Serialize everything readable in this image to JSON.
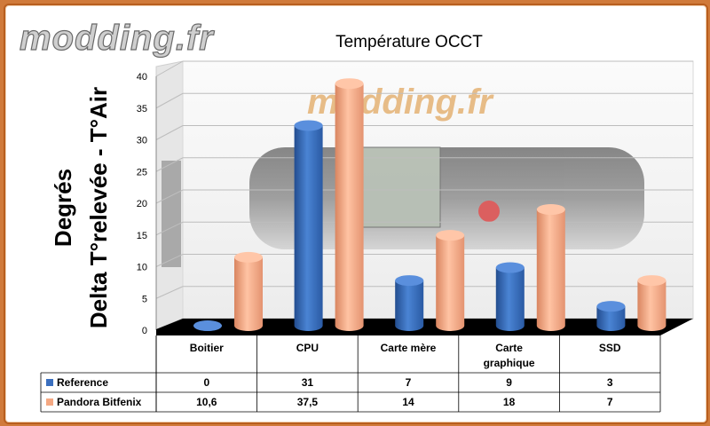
{
  "watermark": "modding.fr",
  "chart_data": {
    "type": "bar",
    "title": "Température OCCT",
    "ylabel_line1": "Degrés",
    "ylabel_line2": "Delta T°relevée - T°Air",
    "categories": [
      "Boitier",
      "CPU",
      "Carte mère",
      "Carte graphique",
      "SSD"
    ],
    "category_lines": [
      [
        "Boitier"
      ],
      [
        "CPU"
      ],
      [
        "Carte mère"
      ],
      [
        "Carte",
        "graphique"
      ],
      [
        "SSD"
      ]
    ],
    "ylim": [
      0,
      40
    ],
    "yticks": [
      0,
      5,
      10,
      15,
      20,
      25,
      30,
      35,
      40
    ],
    "grid": true,
    "legend": "table-below",
    "series": [
      {
        "name": "Reference",
        "values": [
          0,
          31,
          7,
          9,
          3
        ],
        "labels": [
          "0",
          "31",
          "7",
          "9",
          "3"
        ],
        "color": "#3a6fbf"
      },
      {
        "name": "Pandora Bitfenix",
        "values": [
          10.6,
          37.5,
          14,
          18,
          7
        ],
        "labels": [
          "10,6",
          "37,5",
          "14",
          "18",
          "7"
        ],
        "color": "#f5a882"
      }
    ]
  },
  "colors": {
    "frame_orange": "#d07a3a",
    "floor": "#000000",
    "wall": "#f4f4f4"
  }
}
